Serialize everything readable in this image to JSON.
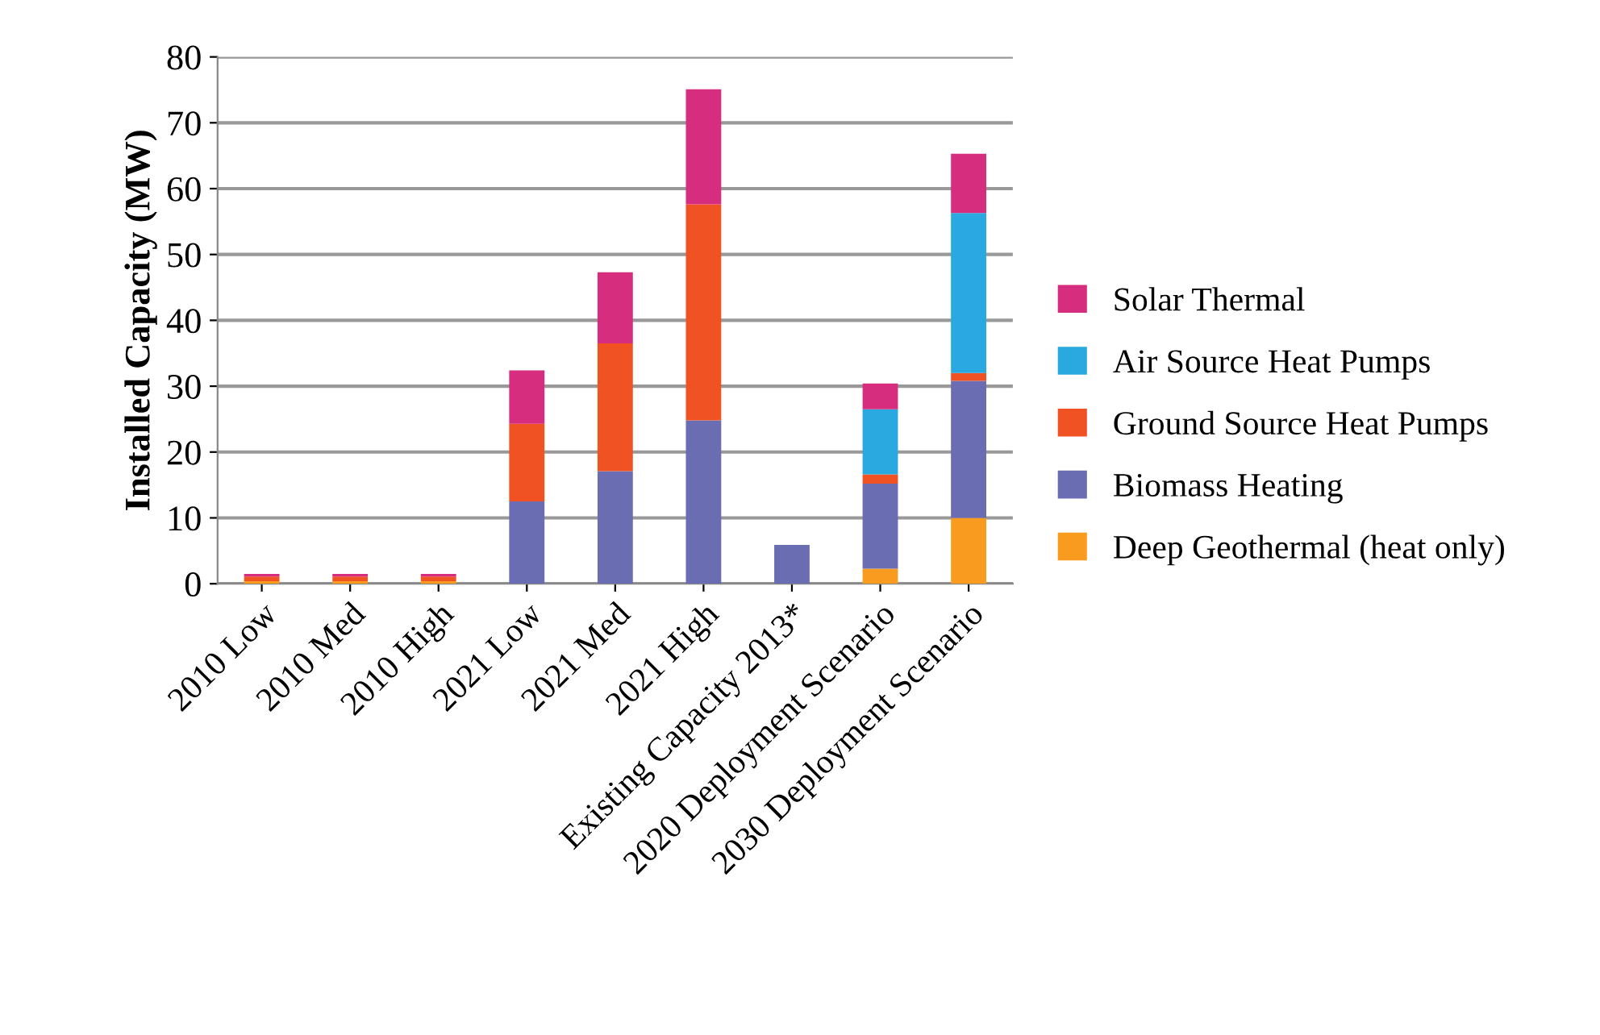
{
  "chart_data": {
    "type": "bar",
    "stacked": true,
    "ylabel": "Installed Capacity (MW)",
    "categories": [
      "2010 Low",
      "2010 Med",
      "2010 High",
      "2021 Low",
      "2021 Med",
      "2021 High",
      "Existing Capacity 2013*",
      "2020 Deployment Scenario",
      "2030 Deployment Scenario"
    ],
    "series": [
      {
        "name": "Deep Geothermal (heat only)",
        "color": "#f99b1f",
        "values": [
          0.4,
          0.4,
          0.4,
          null,
          null,
          null,
          null,
          2.3,
          10.0
        ]
      },
      {
        "name": "Biomass Heating",
        "color": "#6a6db1",
        "values": [
          null,
          null,
          null,
          12.5,
          17.1,
          24.8,
          5.9,
          12.9,
          20.8
        ]
      },
      {
        "name": "Ground Source Heat Pumps",
        "color": "#f15223",
        "values": [
          0.7,
          0.7,
          0.7,
          11.8,
          19.4,
          32.8,
          null,
          1.4,
          1.2
        ]
      },
      {
        "name": "Air Source Heat Pumps",
        "color": "#29a9e0",
        "values": [
          null,
          null,
          null,
          null,
          null,
          null,
          null,
          9.9,
          24.3
        ]
      },
      {
        "name": "Solar Thermal",
        "color": "#d62d7e",
        "values": [
          0.4,
          0.4,
          0.4,
          8.1,
          10.8,
          17.5,
          null,
          3.9,
          9.0
        ]
      }
    ],
    "ylim": [
      0,
      80
    ],
    "yticks": [
      0,
      10,
      20,
      30,
      40,
      50,
      60,
      70,
      80
    ],
    "grid": "y",
    "legend": "right"
  }
}
